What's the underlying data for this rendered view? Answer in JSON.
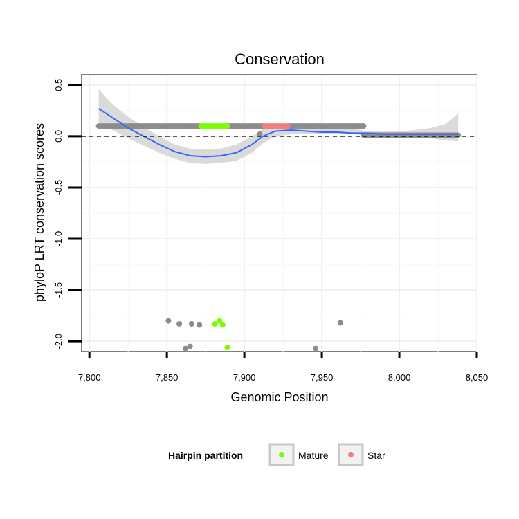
{
  "chart_data": {
    "type": "scatter",
    "title": "Conservation",
    "xlabel": "Genomic Position",
    "ylabel": "phyloP LRT conservation scores",
    "xlim": [
      7795,
      8050
    ],
    "ylim": [
      -2.1,
      0.6
    ],
    "x_ticks": [
      7800,
      7850,
      7900,
      7950,
      8000,
      8050
    ],
    "x_tick_labels": [
      "7,800",
      "7,850",
      "7,900",
      "7,950",
      "8,000",
      "8,050"
    ],
    "y_ticks": [
      0.5,
      0.0,
      -0.5,
      -1.0,
      -1.5,
      -2.0
    ],
    "y_tick_labels": [
      "0.5",
      "0.0",
      "-0.5",
      "-1.0",
      "-1.5",
      "-2.0"
    ],
    "reference_line": {
      "y": 0.0,
      "style": "dashed"
    },
    "legend": {
      "title": "Hairpin partition",
      "position": "bottom",
      "entries": [
        {
          "label": "Mature",
          "color": "#7cfc00"
        },
        {
          "label": "Star",
          "color": "#f08080"
        }
      ]
    },
    "colors": {
      "other": "#8c8c8c",
      "mature": "#7cfc00",
      "star": "#f08080",
      "smooth": "#3366ff",
      "ribbon": "#d3d3d3"
    },
    "series": [
      {
        "name": "Other",
        "dense_ranges": [
          {
            "x_from": 7806,
            "x_to": 7871,
            "y": 0.1,
            "step": 1
          },
          {
            "x_from": 7890,
            "x_to": 7912,
            "y": 0.1,
            "step": 1
          },
          {
            "x_from": 7929,
            "x_to": 7977,
            "y": 0.1,
            "step": 1
          },
          {
            "x_from": 7977,
            "x_to": 8038,
            "y": 0.01,
            "step": 1
          }
        ],
        "points": [
          {
            "x": 7851,
            "y": -1.8
          },
          {
            "x": 7858,
            "y": -1.83
          },
          {
            "x": 7866,
            "y": -1.83
          },
          {
            "x": 7871,
            "y": -1.84
          },
          {
            "x": 7862,
            "y": -2.07
          },
          {
            "x": 7865,
            "y": -2.05
          },
          {
            "x": 7946,
            "y": -2.07
          },
          {
            "x": 7962,
            "y": -1.82
          },
          {
            "x": 7910,
            "y": 0.02
          }
        ]
      },
      {
        "name": "Mature",
        "dense_ranges": [
          {
            "x_from": 7872,
            "x_to": 7889,
            "y": 0.1,
            "step": 1
          }
        ],
        "points": [
          {
            "x": 7881,
            "y": -1.83
          },
          {
            "x": 7884,
            "y": -1.8
          },
          {
            "x": 7886,
            "y": -1.84
          },
          {
            "x": 7889,
            "y": -2.06
          }
        ]
      },
      {
        "name": "Star",
        "dense_ranges": [
          {
            "x_from": 7913,
            "x_to": 7928,
            "y": 0.1,
            "step": 1
          }
        ],
        "points": []
      }
    ],
    "smooth": {
      "x": [
        7806,
        7815,
        7825,
        7835,
        7845,
        7855,
        7865,
        7875,
        7885,
        7895,
        7905,
        7912,
        7920,
        7930,
        7940,
        7950,
        7960,
        7970,
        7980,
        7990,
        8000,
        8010,
        8020,
        8030,
        8038
      ],
      "y": [
        0.27,
        0.18,
        0.08,
        0.0,
        -0.08,
        -0.15,
        -0.19,
        -0.2,
        -0.19,
        -0.16,
        -0.08,
        0.0,
        0.05,
        0.06,
        0.05,
        0.04,
        0.04,
        0.03,
        0.03,
        0.02,
        0.02,
        0.02,
        0.02,
        0.02,
        0.02
      ],
      "lower": [
        0.1,
        0.06,
        -0.02,
        -0.09,
        -0.16,
        -0.22,
        -0.26,
        -0.27,
        -0.26,
        -0.24,
        -0.16,
        -0.07,
        0.0,
        0.02,
        0.02,
        0.02,
        0.02,
        0.02,
        0.01,
        0.0,
        0.0,
        0.0,
        -0.02,
        -0.04,
        -0.05
      ],
      "upper": [
        0.46,
        0.31,
        0.19,
        0.09,
        0.0,
        -0.08,
        -0.12,
        -0.13,
        -0.12,
        -0.08,
        0.0,
        0.07,
        0.12,
        0.12,
        0.11,
        0.09,
        0.08,
        0.07,
        0.05,
        0.05,
        0.05,
        0.06,
        0.08,
        0.12,
        0.22
      ]
    }
  }
}
